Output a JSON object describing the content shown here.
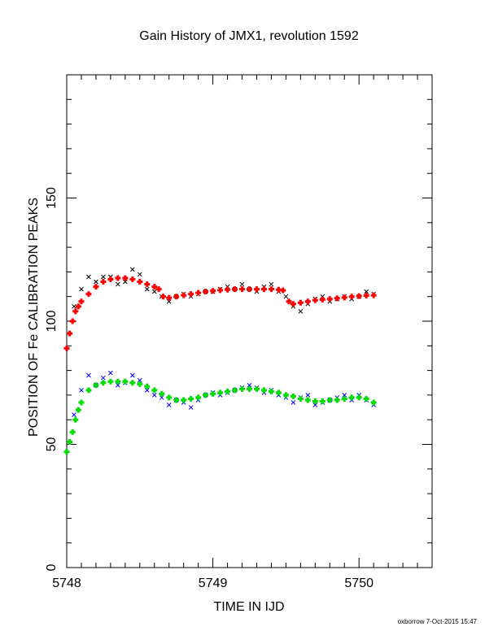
{
  "chart_data": {
    "type": "scatter",
    "title": "Gain History of JMX1, revolution 1592",
    "xlabel": "TIME IN IJD",
    "ylabel": "POSITION OF Fe CALIBRATION PEAKS",
    "xlim": [
      5748.0,
      5750.5
    ],
    "ylim": [
      0,
      200
    ],
    "xticks": [
      5748,
      5749,
      5750
    ],
    "xtick_labels": [
      "5748",
      "5749",
      "5750"
    ],
    "yticks": [
      0,
      50,
      100,
      150
    ],
    "ytick_labels": [
      "0",
      "50",
      "100",
      "150"
    ],
    "grid": false,
    "legend": "none",
    "series": [
      {
        "marker": "x",
        "color": "#000000",
        "x": [
          5748.05,
          5748.1,
          5748.15,
          5748.2,
          5748.25,
          5748.3,
          5748.35,
          5748.4,
          5748.45,
          5748.5,
          5748.55,
          5748.6,
          5748.65,
          5748.7,
          5748.75,
          5748.8,
          5748.85,
          5748.9,
          5748.95,
          5749.0,
          5749.05,
          5749.1,
          5749.15,
          5749.2,
          5749.25,
          5749.3,
          5749.35,
          5749.4,
          5749.45,
          5749.5,
          5749.55,
          5749.6,
          5749.65,
          5749.7,
          5749.75,
          5749.8,
          5749.85,
          5749.9,
          5749.95,
          5750.0,
          5750.05,
          5750.1
        ],
        "y": [
          106,
          113,
          118,
          116,
          118,
          118,
          115,
          116,
          121,
          119,
          113,
          112,
          110,
          108,
          110,
          111,
          110,
          111,
          112,
          112,
          113,
          114,
          113,
          115,
          113,
          112,
          114,
          115,
          112,
          110,
          106,
          104,
          107,
          109,
          110,
          108,
          109,
          110,
          109,
          110,
          112,
          111
        ]
      },
      {
        "marker": "x",
        "color": "#0000ff",
        "x": [
          5748.05,
          5748.1,
          5748.15,
          5748.2,
          5748.25,
          5748.3,
          5748.35,
          5748.4,
          5748.45,
          5748.5,
          5748.55,
          5748.6,
          5748.65,
          5748.7,
          5748.75,
          5748.8,
          5748.85,
          5748.9,
          5748.95,
          5749.0,
          5749.05,
          5749.1,
          5749.15,
          5749.2,
          5749.25,
          5749.3,
          5749.35,
          5749.4,
          5749.45,
          5749.5,
          5749.55,
          5749.6,
          5749.65,
          5749.7,
          5749.75,
          5749.8,
          5749.85,
          5749.9,
          5749.95,
          5750.0,
          5750.05,
          5750.1
        ],
        "y": [
          62,
          72,
          78,
          74,
          77,
          79,
          74,
          75,
          78,
          76,
          72,
          70,
          69,
          66,
          68,
          67,
          65,
          68,
          70,
          71,
          70,
          71,
          72,
          73,
          74,
          73,
          71,
          72,
          70,
          69,
          67,
          69,
          70,
          66,
          67,
          68,
          69,
          70,
          68,
          70,
          68,
          66
        ]
      },
      {
        "marker": "+",
        "color": "#ff0000",
        "x": [
          5748.0,
          5748.02,
          5748.04,
          5748.06,
          5748.08,
          5748.1,
          5748.15,
          5748.2,
          5748.25,
          5748.3,
          5748.35,
          5748.4,
          5748.45,
          5748.5,
          5748.55,
          5748.6,
          5748.63,
          5748.66,
          5748.7,
          5748.75,
          5748.8,
          5748.85,
          5748.9,
          5748.95,
          5749.0,
          5749.05,
          5749.1,
          5749.15,
          5749.2,
          5749.25,
          5749.3,
          5749.35,
          5749.4,
          5749.45,
          5749.48,
          5749.52,
          5749.55,
          5749.6,
          5749.65,
          5749.7,
          5749.75,
          5749.8,
          5749.85,
          5749.9,
          5749.95,
          5750.0,
          5750.05,
          5750.1
        ],
        "y": [
          89,
          95,
          100,
          104,
          106,
          108,
          111,
          114,
          116,
          117,
          117.5,
          117.5,
          117,
          116,
          115,
          114,
          113,
          110,
          109.5,
          110,
          110.5,
          111,
          111.5,
          112,
          112.3,
          112.6,
          112.8,
          113,
          113,
          113,
          113,
          113,
          113,
          112.8,
          112.5,
          108,
          107,
          107.5,
          108,
          108.5,
          108.8,
          109,
          109.3,
          109.6,
          110,
          110.2,
          110.4,
          110.5
        ]
      },
      {
        "marker": "+",
        "color": "#00dd00",
        "x": [
          5748.0,
          5748.02,
          5748.04,
          5748.06,
          5748.08,
          5748.1,
          5748.15,
          5748.2,
          5748.25,
          5748.3,
          5748.35,
          5748.4,
          5748.45,
          5748.5,
          5748.55,
          5748.6,
          5748.65,
          5748.7,
          5748.75,
          5748.8,
          5748.85,
          5748.9,
          5748.95,
          5749.0,
          5749.05,
          5749.1,
          5749.15,
          5749.2,
          5749.25,
          5749.3,
          5749.35,
          5749.4,
          5749.45,
          5749.5,
          5749.55,
          5749.6,
          5749.65,
          5749.7,
          5749.75,
          5749.8,
          5749.85,
          5749.9,
          5749.95,
          5750.0,
          5750.05,
          5750.1
        ],
        "y": [
          47,
          51,
          55,
          60,
          64,
          67,
          72,
          74,
          75,
          75.5,
          75.5,
          75.5,
          75,
          74.5,
          73.5,
          72,
          70.5,
          69,
          68,
          68,
          68.5,
          69,
          70,
          70.5,
          71,
          71.5,
          72,
          72.5,
          72.5,
          72.5,
          72,
          71.5,
          71,
          70,
          69.5,
          68.5,
          68,
          67.5,
          67.5,
          68,
          68,
          68.5,
          69,
          69,
          68.5,
          67
        ]
      }
    ]
  },
  "footer": "oxborrow  7-Oct-2015 15:47"
}
